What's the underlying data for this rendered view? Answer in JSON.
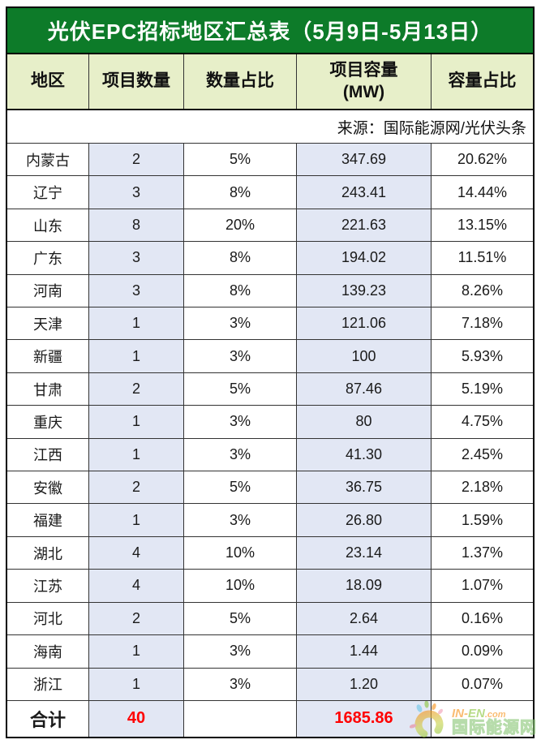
{
  "title": "光伏EPC招标地区汇总表（5月9日-5月13日）",
  "source_note": "来源：国际能源网/光伏头条",
  "table": {
    "header": {
      "region": "地区",
      "count": "项目数量",
      "count_pct": "数量占比",
      "capacity_line1": "项目容量",
      "capacity_line2": "(MW)",
      "capacity_pct": "容量占比"
    },
    "rows": [
      {
        "region": "内蒙古",
        "count": "2",
        "count_pct": "5%",
        "capacity": "347.69",
        "capacity_pct": "20.62%"
      },
      {
        "region": "辽宁",
        "count": "3",
        "count_pct": "8%",
        "capacity": "243.41",
        "capacity_pct": "14.44%"
      },
      {
        "region": "山东",
        "count": "8",
        "count_pct": "20%",
        "capacity": "221.63",
        "capacity_pct": "13.15%"
      },
      {
        "region": "广东",
        "count": "3",
        "count_pct": "8%",
        "capacity": "194.02",
        "capacity_pct": "11.51%"
      },
      {
        "region": "河南",
        "count": "3",
        "count_pct": "8%",
        "capacity": "139.23",
        "capacity_pct": "8.26%"
      },
      {
        "region": "天津",
        "count": "1",
        "count_pct": "3%",
        "capacity": "121.06",
        "capacity_pct": "7.18%"
      },
      {
        "region": "新疆",
        "count": "1",
        "count_pct": "3%",
        "capacity": "100",
        "capacity_pct": "5.93%"
      },
      {
        "region": "甘肃",
        "count": "2",
        "count_pct": "5%",
        "capacity": "87.46",
        "capacity_pct": "5.19%"
      },
      {
        "region": "重庆",
        "count": "1",
        "count_pct": "3%",
        "capacity": "80",
        "capacity_pct": "4.75%"
      },
      {
        "region": "江西",
        "count": "1",
        "count_pct": "3%",
        "capacity": "41.30",
        "capacity_pct": "2.45%"
      },
      {
        "region": "安徽",
        "count": "2",
        "count_pct": "5%",
        "capacity": "36.75",
        "capacity_pct": "2.18%"
      },
      {
        "region": "福建",
        "count": "1",
        "count_pct": "3%",
        "capacity": "26.80",
        "capacity_pct": "1.59%"
      },
      {
        "region": "湖北",
        "count": "4",
        "count_pct": "10%",
        "capacity": "23.14",
        "capacity_pct": "1.37%"
      },
      {
        "region": "江苏",
        "count": "4",
        "count_pct": "10%",
        "capacity": "18.09",
        "capacity_pct": "1.07%"
      },
      {
        "region": "河北",
        "count": "2",
        "count_pct": "5%",
        "capacity": "2.64",
        "capacity_pct": "0.16%"
      },
      {
        "region": "海南",
        "count": "1",
        "count_pct": "3%",
        "capacity": "1.44",
        "capacity_pct": "0.09%"
      },
      {
        "region": "浙江",
        "count": "1",
        "count_pct": "3%",
        "capacity": "1.20",
        "capacity_pct": "0.07%"
      }
    ],
    "total": {
      "label": "合计",
      "count": "40",
      "count_pct": "",
      "capacity": "1685.86",
      "capacity_pct": ""
    }
  },
  "watermark": {
    "line1_part1": "IN-",
    "line1_part2": "EN",
    "line1_part3": ".com",
    "line2": "国际能源网"
  },
  "colors": {
    "title_bg": "#0d7b29",
    "header_bg": "#e7efc9",
    "highlight_col_bg": "#e2e7f4",
    "total_value_red": "#ff0000",
    "border": "#333333"
  },
  "chart_data": {
    "type": "table",
    "title": "光伏EPC招标地区汇总表（5月9日-5月13日）",
    "source": "来源：国际能源网/光伏头条",
    "columns": [
      "地区",
      "项目数量",
      "数量占比",
      "项目容量(MW)",
      "容量占比"
    ],
    "rows": [
      [
        "内蒙古",
        2,
        "5%",
        347.69,
        "20.62%"
      ],
      [
        "辽宁",
        3,
        "8%",
        243.41,
        "14.44%"
      ],
      [
        "山东",
        8,
        "20%",
        221.63,
        "13.15%"
      ],
      [
        "广东",
        3,
        "8%",
        194.02,
        "11.51%"
      ],
      [
        "河南",
        3,
        "8%",
        139.23,
        "8.26%"
      ],
      [
        "天津",
        1,
        "3%",
        121.06,
        "7.18%"
      ],
      [
        "新疆",
        1,
        "3%",
        100,
        "5.93%"
      ],
      [
        "甘肃",
        2,
        "5%",
        87.46,
        "5.19%"
      ],
      [
        "重庆",
        1,
        "3%",
        80,
        "4.75%"
      ],
      [
        "江西",
        1,
        "3%",
        41.3,
        "2.45%"
      ],
      [
        "安徽",
        2,
        "5%",
        36.75,
        "2.18%"
      ],
      [
        "福建",
        1,
        "3%",
        26.8,
        "1.59%"
      ],
      [
        "湖北",
        4,
        "10%",
        23.14,
        "1.37%"
      ],
      [
        "江苏",
        4,
        "10%",
        18.09,
        "1.07%"
      ],
      [
        "河北",
        2,
        "5%",
        2.64,
        "0.16%"
      ],
      [
        "海南",
        1,
        "3%",
        1.44,
        "0.09%"
      ],
      [
        "浙江",
        1,
        "3%",
        1.2,
        "0.07%"
      ]
    ],
    "total_row": [
      "合计",
      40,
      "",
      1685.86,
      ""
    ]
  }
}
